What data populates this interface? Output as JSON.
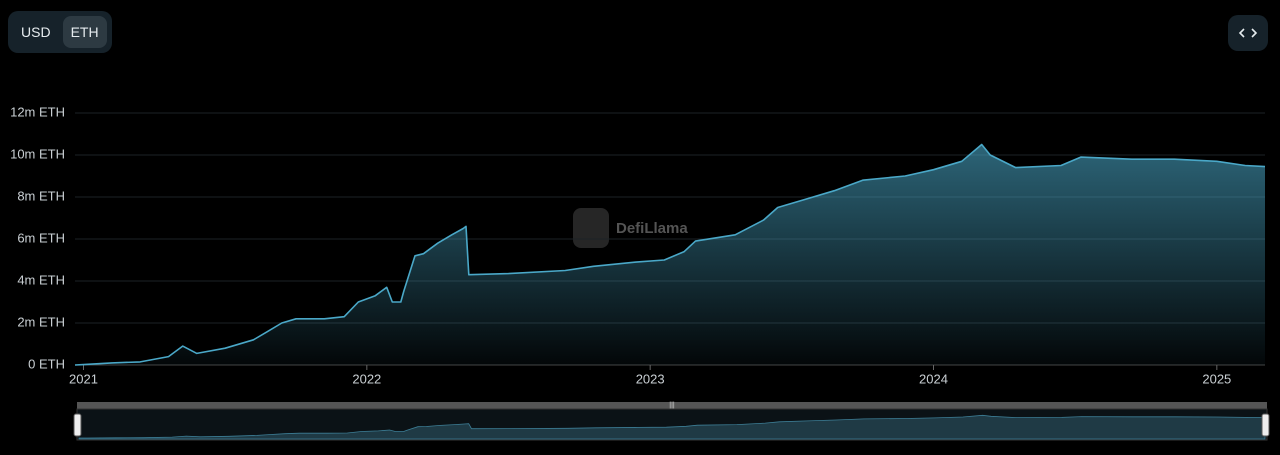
{
  "controls": {
    "currency_options": [
      "USD",
      "ETH"
    ]
  },
  "watermark": "DefiLlama",
  "chart_data": {
    "type": "area",
    "x": [
      2020.97,
      2021.0,
      2021.1,
      2021.2,
      2021.3,
      2021.35,
      2021.4,
      2021.5,
      2021.6,
      2021.65,
      2021.7,
      2021.75,
      2021.85,
      2021.92,
      2021.97,
      2022.03,
      2022.07,
      2022.09,
      2022.12,
      2022.13,
      2022.17,
      2022.2,
      2022.25,
      2022.3,
      2022.34,
      2022.35,
      2022.36,
      2022.5,
      2022.7,
      2022.8,
      2022.95,
      2023.05,
      2023.12,
      2023.16,
      2023.3,
      2023.4,
      2023.45,
      2023.55,
      2023.65,
      2023.75,
      2023.9,
      2024.0,
      2024.1,
      2024.17,
      2024.2,
      2024.29,
      2024.45,
      2024.52,
      2024.7,
      2024.85,
      2025.0,
      2025.1,
      2025.17
    ],
    "values": [
      0,
      0.02,
      0.1,
      0.15,
      0.4,
      0.9,
      0.55,
      0.8,
      1.2,
      1.6,
      2.0,
      2.2,
      2.2,
      2.3,
      3.0,
      3.3,
      3.7,
      3.0,
      3.0,
      3.5,
      5.2,
      5.3,
      5.8,
      6.2,
      6.5,
      6.6,
      4.3,
      4.35,
      4.5,
      4.7,
      4.9,
      5.0,
      5.4,
      5.9,
      6.2,
      6.9,
      7.5,
      7.9,
      8.3,
      8.8,
      9.0,
      9.3,
      9.7,
      10.5,
      10.0,
      9.4,
      9.5,
      9.9,
      9.8,
      9.8,
      9.7,
      9.5,
      9.45
    ],
    "color": "#4aa8c8",
    "xlim": [
      2020.97,
      2025.17
    ],
    "xticks": [
      2021,
      2022,
      2023,
      2024,
      2025
    ],
    "ylim": [
      0,
      12
    ],
    "yticks": [
      {
        "value": 0,
        "label": "0 ETH"
      },
      {
        "value": 2,
        "label": "2m ETH"
      },
      {
        "value": 4,
        "label": "4m ETH"
      },
      {
        "value": 6,
        "label": "6m ETH"
      },
      {
        "value": 8,
        "label": "8m ETH"
      },
      {
        "value": 10,
        "label": "10m ETH"
      },
      {
        "value": 12,
        "label": "12m ETH"
      }
    ],
    "grid": true
  }
}
